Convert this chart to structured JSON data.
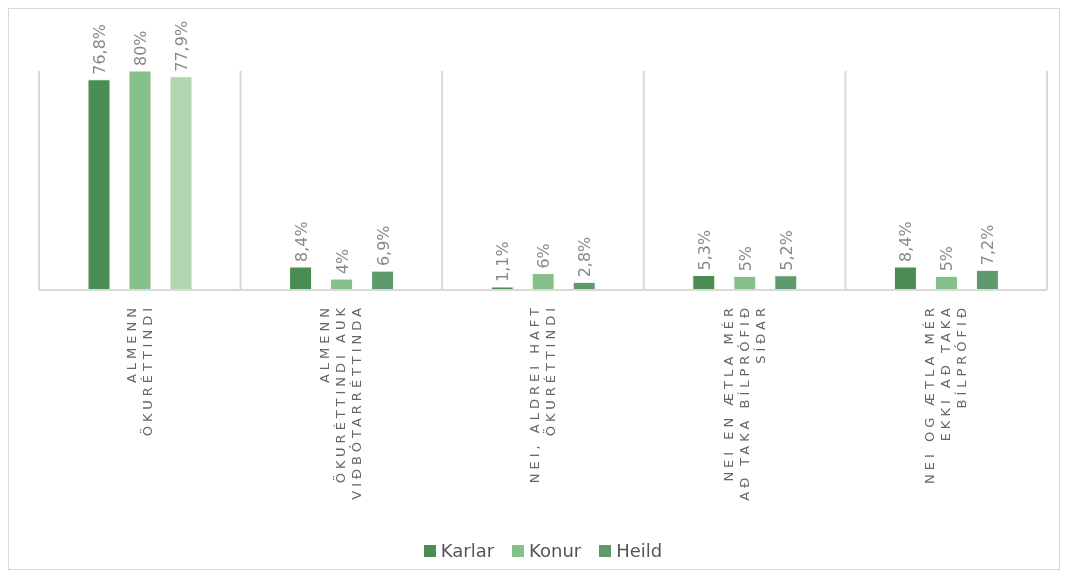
{
  "chart_data": {
    "type": "bar",
    "categories": [
      "ALMENN ÖKURÉTTINDI",
      "ALMENN ÖKURÉTTINDI AUK VIÐBÓTARRÉTTINDA",
      "NEI, ALDREI HAFT ÖKURÉTTINDI",
      "NEI EN ÆTLA MÉR AÐ TAKA BÍLPRÓFIÐ SÍÐAR",
      "NEI OG ÆTLA MÉR EKKI AÐ TAKA BÍLPRÓFIÐ"
    ],
    "series": [
      {
        "name": "Karlar",
        "color": "#4a8c52",
        "values": [
          76.8,
          8.4,
          1.1,
          5.3,
          8.4
        ],
        "value_labels": [
          "76,8%",
          "8,4%",
          "1,1%",
          "5,3%",
          "8,4%"
        ]
      },
      {
        "name": "Konur",
        "color": "#85bf8a",
        "values": [
          80,
          4,
          6,
          5,
          5
        ],
        "value_labels": [
          "80%",
          "4%",
          "6%",
          "5%",
          "5%"
        ]
      },
      {
        "name": "Heild",
        "color": "#5e9a6e",
        "colors": [
          "#b0d6b0",
          "#5e9a6e",
          "#5e9a6e",
          "#5e9a6e",
          "#5e9a6e"
        ],
        "values": [
          77.9,
          6.9,
          2.8,
          5.2,
          7.2
        ],
        "value_labels": [
          "77,9%",
          "6,9%",
          "2,8%",
          "5,2%",
          "7,2%"
        ]
      }
    ],
    "grid": "x",
    "legend": "bottom"
  }
}
